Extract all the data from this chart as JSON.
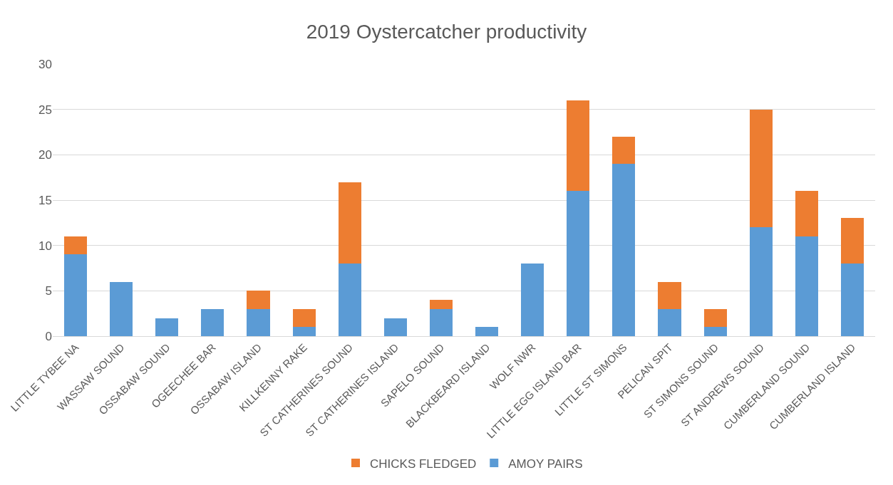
{
  "chart_data": {
    "type": "bar",
    "title": "2019 Oystercatcher productivity",
    "stacked": true,
    "grid": "y",
    "legend": "bottom",
    "categories": [
      "LITTLE TYBEE NA",
      "WASSAW SOUND",
      "OSSABAW SOUND",
      "OGEECHEE BAR",
      "OSSABAW ISLAND",
      "KILLKENNY RAKE",
      "ST CATHERINES SOUND",
      "ST CATHERINES ISLAND",
      "SAPELO SOUND",
      "BLACKBEARD ISLAND",
      "WOLF NWR",
      "LITTLE EGG ISLAND BAR",
      "LITTLE ST SIMONS",
      "PELICAN SPIT",
      "ST SIMONS SOUND",
      "ST ANDREWS SOUND",
      "CUMBERLAND SOUND",
      "CUMBERLAND ISLAND"
    ],
    "series": [
      {
        "name": "AMOY PAIRS",
        "color": "#5b9bd5",
        "values": [
          9,
          6,
          2,
          3,
          3,
          1,
          8,
          2,
          3,
          1,
          8,
          16,
          19,
          3,
          1,
          12,
          11,
          8
        ]
      },
      {
        "name": "CHICKS FLEDGED",
        "color": "#ed7d31",
        "values": [
          2,
          0,
          0,
          0,
          2,
          2,
          9,
          0,
          1,
          0,
          0,
          10,
          3,
          3,
          2,
          13,
          5,
          5
        ]
      }
    ],
    "ylim": [
      0,
      30
    ],
    "yticks": [
      0,
      5,
      10,
      15,
      20,
      25,
      30
    ]
  }
}
